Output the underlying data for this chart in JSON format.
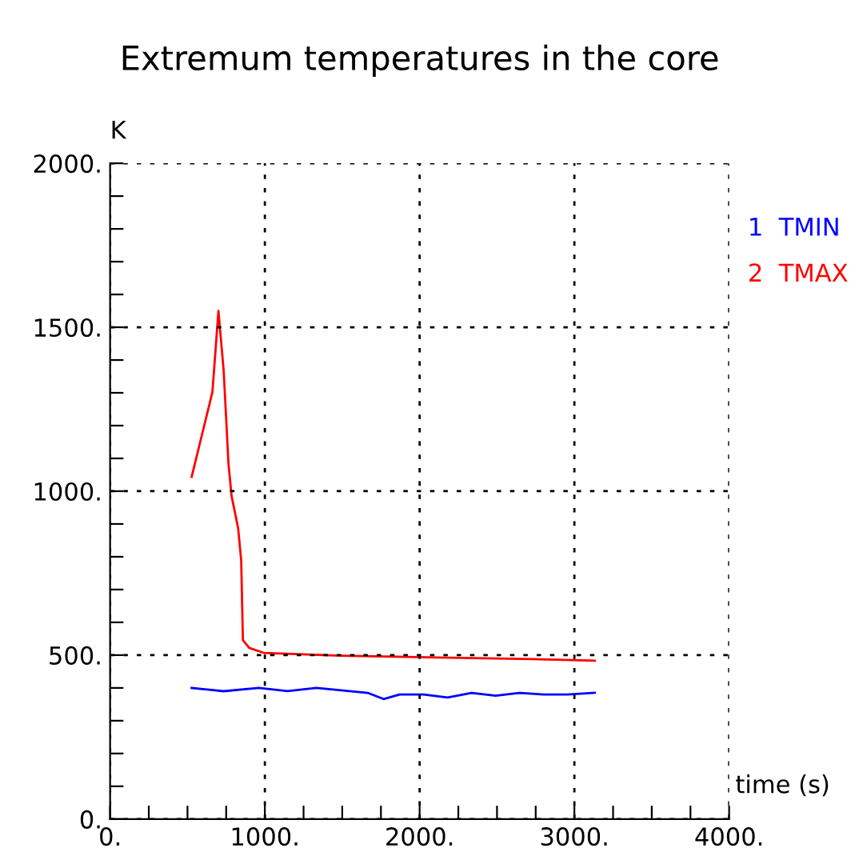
{
  "chart_data": {
    "type": "line",
    "title": "Extremum temperatures in the core",
    "xlabel": "time (s)",
    "ylabel": "K",
    "xlim": [
      0,
      4000
    ],
    "ylim": [
      0,
      2000
    ],
    "xticks": [
      {
        "value": 0,
        "label": "0."
      },
      {
        "value": 250,
        "label": null
      },
      {
        "value": 500,
        "label": null
      },
      {
        "value": 750,
        "label": null
      },
      {
        "value": 1000,
        "label": "1000."
      },
      {
        "value": 1250,
        "label": null
      },
      {
        "value": 1500,
        "label": null
      },
      {
        "value": 1750,
        "label": null
      },
      {
        "value": 2000,
        "label": "2000."
      },
      {
        "value": 2250,
        "label": null
      },
      {
        "value": 2500,
        "label": null
      },
      {
        "value": 2750,
        "label": null
      },
      {
        "value": 3000,
        "label": "3000."
      },
      {
        "value": 3250,
        "label": null
      },
      {
        "value": 3500,
        "label": null
      },
      {
        "value": 3750,
        "label": null
      },
      {
        "value": 4000,
        "label": "4000."
      }
    ],
    "yticks": [
      {
        "value": 0,
        "label": "0."
      },
      {
        "value": 100,
        "label": null
      },
      {
        "value": 200,
        "label": null
      },
      {
        "value": 300,
        "label": null
      },
      {
        "value": 400,
        "label": null
      },
      {
        "value": 500,
        "label": "500."
      },
      {
        "value": 600,
        "label": null
      },
      {
        "value": 700,
        "label": null
      },
      {
        "value": 800,
        "label": null
      },
      {
        "value": 900,
        "label": null
      },
      {
        "value": 1000,
        "label": "1000."
      },
      {
        "value": 1100,
        "label": null
      },
      {
        "value": 1200,
        "label": null
      },
      {
        "value": 1300,
        "label": null
      },
      {
        "value": 1400,
        "label": null
      },
      {
        "value": 1500,
        "label": "1500."
      },
      {
        "value": 1600,
        "label": null
      },
      {
        "value": 1700,
        "label": null
      },
      {
        "value": 1800,
        "label": null
      },
      {
        "value": 1900,
        "label": null
      },
      {
        "value": 2000,
        "label": "2000."
      }
    ],
    "grid": true,
    "legend": "right",
    "line_style": "solid",
    "series": [
      {
        "name": "1  TMIN",
        "color": "#0000ff",
        "x": [
          527,
          734,
          961,
          1147,
          1333,
          1664,
          1767,
          1871,
          2026,
          2181,
          2336,
          2491,
          2646,
          2801,
          2956,
          3132
        ],
        "values": [
          400,
          390,
          400,
          390,
          400,
          385,
          366,
          380,
          380,
          371,
          385,
          376,
          385,
          380,
          380,
          385
        ]
      },
      {
        "name": "2  TMAX",
        "color": "#ff0000",
        "x": [
          527,
          661,
          700,
          734,
          765,
          785,
          827,
          847,
          858,
          899,
          992,
          1488,
          2119,
          2729,
          3132
        ],
        "values": [
          1044,
          1302,
          1550,
          1366,
          1083,
          985,
          888,
          790,
          546,
          522,
          507,
          498,
          493,
          488,
          483
        ]
      }
    ]
  }
}
